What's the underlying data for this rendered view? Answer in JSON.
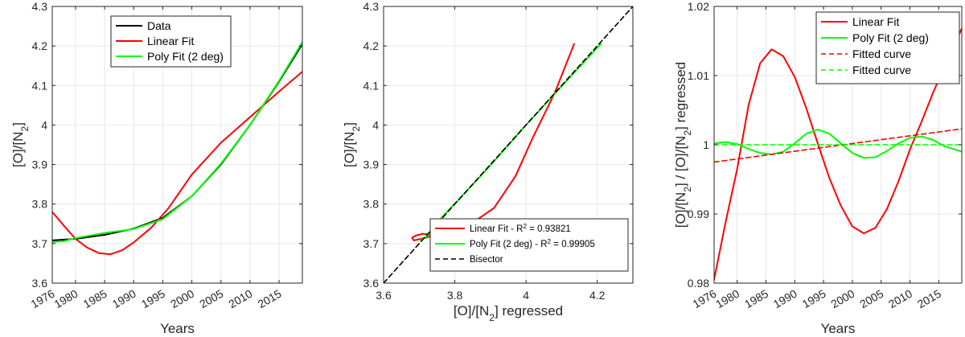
{
  "colors": {
    "data": "#000000",
    "linear": "#ff0000",
    "poly": "#00ff00",
    "bisector": "#000000",
    "grid": "#e6e6e6",
    "axis": "#262626"
  },
  "chart_data": [
    {
      "type": "line",
      "xlabel": "Years",
      "ylabel": "[O]/[N2]",
      "xlim": [
        1976,
        2019
      ],
      "ylim": [
        3.6,
        4.3
      ],
      "xticks": [
        1976,
        1980,
        1985,
        1990,
        1995,
        2000,
        2005,
        2010,
        2015
      ],
      "xtick_labels": [
        "1976",
        "1980",
        "1985",
        "1990",
        "1995",
        "2000",
        "2005",
        "2010",
        "2015"
      ],
      "yticks": [
        3.6,
        3.7,
        3.8,
        3.9,
        4.0,
        4.1,
        4.2,
        4.3
      ],
      "ytick_labels": [
        "3.6",
        "3.7",
        "3.8",
        "3.9",
        "4",
        "4.1",
        "4.2",
        "4.3"
      ],
      "grid": true,
      "legend_position": "top-center",
      "legend": [
        "Data",
        "Linear Fit",
        "Poly Fit (2 deg)"
      ],
      "series": [
        {
          "name": "Data",
          "color": "#000000",
          "x": [
            1976,
            1980,
            1985,
            1990,
            1995,
            2000,
            2005,
            2010,
            2015,
            2019
          ],
          "y": [
            3.708,
            3.712,
            3.722,
            3.738,
            3.765,
            3.82,
            3.9,
            4.0,
            4.11,
            4.205
          ]
        },
        {
          "name": "Linear Fit",
          "color": "#ff0000",
          "x": [
            1976,
            1978,
            1980,
            1982,
            1984,
            1986,
            1988,
            1990,
            1993,
            1996,
            2000,
            2005,
            2010,
            2015,
            2019
          ],
          "y": [
            3.78,
            3.745,
            3.712,
            3.69,
            3.676,
            3.673,
            3.683,
            3.703,
            3.74,
            3.79,
            3.875,
            3.955,
            4.02,
            4.085,
            4.135
          ]
        },
        {
          "name": "Poly Fit (2 deg)",
          "color": "#00ff00",
          "x": [
            1976,
            1978,
            1980,
            1985,
            1990,
            1995,
            2000,
            2005,
            2010,
            2015,
            2019
          ],
          "y": [
            3.704,
            3.706,
            3.714,
            3.727,
            3.737,
            3.762,
            3.82,
            3.902,
            4.0,
            4.112,
            4.21
          ]
        }
      ]
    },
    {
      "type": "line",
      "xlabel": "[O]/[N2] regressed",
      "ylabel": "[O]/[N2]",
      "xlim": [
        3.6,
        4.3
      ],
      "ylim": [
        3.6,
        4.3
      ],
      "xticks": [
        3.6,
        3.8,
        4.0,
        4.2
      ],
      "xtick_labels": [
        "3.6",
        "3.8",
        "4",
        "4.2"
      ],
      "yticks": [
        3.6,
        3.7,
        3.8,
        3.9,
        4.0,
        4.1,
        4.2,
        4.3
      ],
      "ytick_labels": [
        "3.6",
        "3.7",
        "3.8",
        "3.9",
        "4",
        "4.1",
        "4.2",
        "4.3"
      ],
      "grid": true,
      "legend_position": "bottom-right",
      "legend": [
        "Linear Fit - R2 = 0.93821",
        "Poly Fit (2 deg) - R2 = 0.99905",
        "Bisector"
      ],
      "series": [
        {
          "name": "Linear Fit - R2 = 0.93821",
          "color": "#ff0000",
          "x": [
            3.745,
            3.71,
            3.69,
            3.68,
            3.685,
            3.705,
            3.76,
            3.83,
            3.91,
            3.97,
            4.02,
            4.08,
            4.135
          ],
          "y": [
            3.72,
            3.725,
            3.72,
            3.715,
            3.708,
            3.712,
            3.725,
            3.74,
            3.79,
            3.87,
            3.97,
            4.08,
            4.205
          ]
        },
        {
          "name": "Poly Fit (2 deg) - R2 = 0.99905",
          "color": "#00ff00",
          "x": [
            3.704,
            3.727,
            3.762,
            3.82,
            3.902,
            4.0,
            4.112,
            4.21
          ],
          "y": [
            3.708,
            3.722,
            3.765,
            3.82,
            3.9,
            4.0,
            4.11,
            4.205
          ]
        },
        {
          "name": "Bisector",
          "color": "#000000",
          "dashed": true,
          "x": [
            3.6,
            4.3
          ],
          "y": [
            3.6,
            4.3
          ]
        }
      ]
    },
    {
      "type": "line",
      "xlabel": "Years",
      "ylabel": "[O]/[N2] / [O]/[N2] regressed",
      "xlim": [
        1976,
        2019
      ],
      "ylim": [
        0.98,
        1.02
      ],
      "xticks": [
        1976,
        1980,
        1985,
        1990,
        1995,
        2000,
        2005,
        2010,
        2015
      ],
      "xtick_labels": [
        "1976",
        "1980",
        "1985",
        "1990",
        "1995",
        "2000",
        "2005",
        "2010",
        "2015"
      ],
      "yticks": [
        0.98,
        0.99,
        1.0,
        1.01,
        1.02
      ],
      "ytick_labels": [
        "0.98",
        "0.99",
        "1",
        "1.01",
        "1.02"
      ],
      "grid": true,
      "legend_position": "top-right",
      "legend": [
        "Linear Fit",
        "Poly Fit (2 deg)",
        "Fitted curve",
        "Fitted curve"
      ],
      "series": [
        {
          "name": "Linear Fit",
          "color": "#ff0000",
          "x": [
            1976,
            1978,
            1980,
            1982,
            1984,
            1986,
            1988,
            1990,
            1992,
            1994,
            1996,
            1998,
            2000,
            2002,
            2004,
            2006,
            2008,
            2010,
            2012,
            2014,
            2016,
            2019
          ],
          "y": [
            0.9805,
            0.9888,
            0.9965,
            1.0058,
            1.0118,
            1.0138,
            1.0128,
            1.0098,
            1.0053,
            1.0002,
            0.9952,
            0.9912,
            0.9882,
            0.9872,
            0.988,
            0.9907,
            0.9947,
            0.9993,
            1.0033,
            1.0075,
            1.0113,
            1.0168
          ]
        },
        {
          "name": "Poly Fit (2 deg)",
          "color": "#00ff00",
          "x": [
            1976,
            1978,
            1980,
            1982,
            1984,
            1986,
            1988,
            1990,
            1992,
            1994,
            1996,
            1998,
            2000,
            2002,
            2004,
            2006,
            2008,
            2010,
            2012,
            2014,
            2016,
            2019
          ],
          "y": [
            1.0002,
            1.0004,
            1.0001,
            0.9994,
            0.9988,
            0.9986,
            0.999,
            1.0002,
            1.0016,
            1.0022,
            1.0016,
            1.0002,
            0.9988,
            0.9981,
            0.9982,
            0.9991,
            1.0002,
            1.001,
            1.0012,
            1.0007,
            0.9998,
            0.999
          ]
        },
        {
          "name": "Fitted curve",
          "color": "#ff0000",
          "dashed": true,
          "x": [
            1976,
            2019
          ],
          "y": [
            0.9975,
            1.0023
          ]
        },
        {
          "name": "Fitted curve",
          "color": "#00ff00",
          "dashed": true,
          "x": [
            1976,
            2019
          ],
          "y": [
            1.0,
            1.0
          ]
        }
      ]
    }
  ]
}
